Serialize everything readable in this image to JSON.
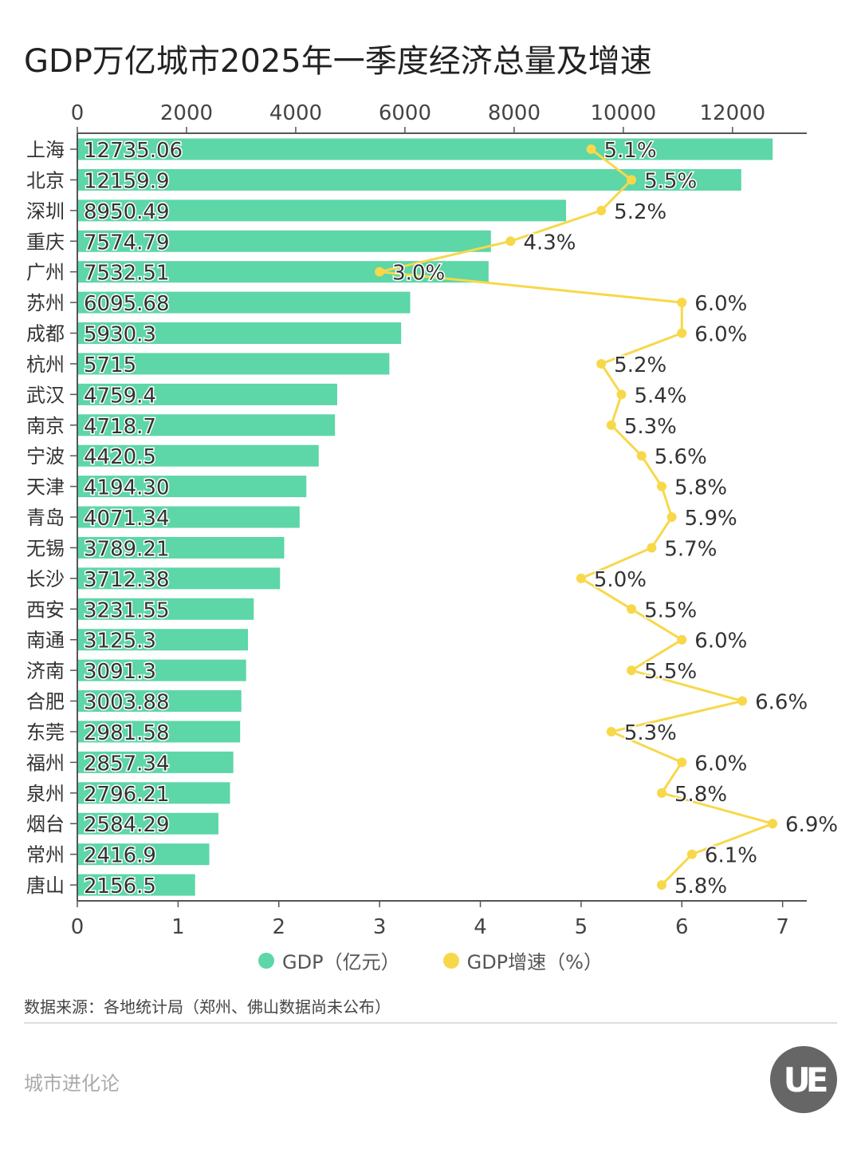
{
  "title": "GDP万亿城市2025年一季度经济总量及增速",
  "chart_data": {
    "type": "bar",
    "orientation": "horizontal",
    "categories": [
      "上海",
      "北京",
      "深圳",
      "重庆",
      "广州",
      "苏州",
      "成都",
      "杭州",
      "武汉",
      "南京",
      "宁波",
      "天津",
      "青岛",
      "无锡",
      "长沙",
      "西安",
      "南通",
      "济南",
      "合肥",
      "东莞",
      "福州",
      "泉州",
      "烟台",
      "常州",
      "唐山"
    ],
    "series": [
      {
        "name": "GDP（亿元）",
        "type": "bar",
        "axis": "top",
        "color": "#5dd6a8",
        "values": [
          12735.06,
          12159.9,
          8950.49,
          7574.79,
          7532.51,
          6095.68,
          5930.3,
          5715,
          4759.4,
          4718.7,
          4420.5,
          4194.3,
          4071.34,
          3789.21,
          3712.38,
          3231.55,
          3125.3,
          3091.3,
          3003.88,
          2981.58,
          2857.34,
          2796.21,
          2584.29,
          2416.9,
          2156.5
        ],
        "labels": [
          "12735.06",
          "12159.9",
          "8950.49",
          "7574.79",
          "7532.51",
          "6095.68",
          "5930.3",
          "5715",
          "4759.4",
          "4718.7",
          "4420.5",
          "4194.30",
          "4071.34",
          "3789.21",
          "3712.38",
          "3231.55",
          "3125.3",
          "3091.3",
          "3003.88",
          "2981.58",
          "2857.34",
          "2796.21",
          "2584.29",
          "2416.9",
          "2156.5"
        ]
      },
      {
        "name": "GDP增速（%）",
        "type": "line",
        "axis": "bottom",
        "color": "#f7d84a",
        "values": [
          5.1,
          5.5,
          5.2,
          4.3,
          3.0,
          6.0,
          6.0,
          5.2,
          5.4,
          5.3,
          5.6,
          5.8,
          5.9,
          5.7,
          5.0,
          5.5,
          6.0,
          5.5,
          6.6,
          5.3,
          6.0,
          5.8,
          6.9,
          6.1,
          5.8
        ],
        "labels": [
          "5.1%",
          "5.5%",
          "5.2%",
          "4.3%",
          "3.0%",
          "6.0%",
          "6.0%",
          "5.2%",
          "5.4%",
          "5.3%",
          "5.6%",
          "5.8%",
          "5.9%",
          "5.7%",
          "5.0%",
          "5.5%",
          "6.0%",
          "5.5%",
          "6.6%",
          "5.3%",
          "6.0%",
          "5.8%",
          "6.9%",
          "6.1%",
          "5.8%"
        ]
      }
    ],
    "top_axis": {
      "ticks": [
        "0",
        "2000",
        "4000",
        "6000",
        "8000",
        "10000",
        "12000"
      ],
      "range": [
        0,
        13360
      ]
    },
    "bottom_axis": {
      "ticks": [
        "0",
        "1",
        "2",
        "3",
        "4",
        "5",
        "6",
        "7"
      ],
      "range": [
        0,
        7.24
      ]
    },
    "legend_position": "bottom",
    "grid": false
  },
  "legend": {
    "gdp": "GDP（亿元）",
    "growth": "GDP增速（%）",
    "gdp_color": "#5dd6a8",
    "growth_color": "#f7d84a"
  },
  "source": "数据来源：各地统计局（郑州、佛山数据尚未公布）",
  "brand": "城市进化论",
  "logo_text": "UE"
}
